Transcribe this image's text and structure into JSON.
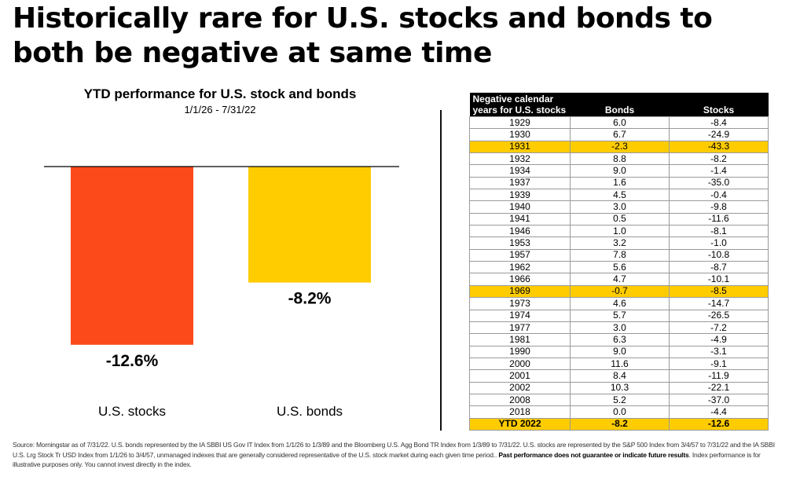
{
  "headline": "Historically rare for U.S. stocks and bonds to both be negative at same time",
  "chart_data": {
    "type": "bar",
    "title": "YTD performance for U.S. stock and bonds",
    "subtitle": "1/1/26 - 7/31/22",
    "categories": [
      "U.S. stocks",
      "U.S. bonds"
    ],
    "values": [
      -12.6,
      -8.2
    ],
    "value_labels": [
      "-12.6%",
      "-8.2%"
    ],
    "colors": [
      "#fc4a1a",
      "#ffcc00"
    ],
    "xlabel": "",
    "ylabel": "",
    "grid": false,
    "legend": "none"
  },
  "table": {
    "headers": [
      "Negative calendar years for U.S. stocks",
      "Bonds",
      "Stocks"
    ],
    "rows": [
      {
        "year": "1929",
        "bonds": "6.0",
        "stocks": "-8.4",
        "highlight": false
      },
      {
        "year": "1930",
        "bonds": "6.7",
        "stocks": "-24.9",
        "highlight": false
      },
      {
        "year": "1931",
        "bonds": "-2.3",
        "stocks": "-43.3",
        "highlight": true
      },
      {
        "year": "1932",
        "bonds": "8.8",
        "stocks": "-8.2",
        "highlight": false
      },
      {
        "year": "1934",
        "bonds": "9.0",
        "stocks": "-1.4",
        "highlight": false
      },
      {
        "year": "1937",
        "bonds": "1.6",
        "stocks": "-35.0",
        "highlight": false
      },
      {
        "year": "1939",
        "bonds": "4.5",
        "stocks": "-0.4",
        "highlight": false
      },
      {
        "year": "1940",
        "bonds": "3.0",
        "stocks": "-9.8",
        "highlight": false
      },
      {
        "year": "1941",
        "bonds": "0.5",
        "stocks": "-11.6",
        "highlight": false
      },
      {
        "year": "1946",
        "bonds": "1.0",
        "stocks": "-8.1",
        "highlight": false
      },
      {
        "year": "1953",
        "bonds": "3.2",
        "stocks": "-1.0",
        "highlight": false
      },
      {
        "year": "1957",
        "bonds": "7.8",
        "stocks": "-10.8",
        "highlight": false
      },
      {
        "year": "1962",
        "bonds": "5.6",
        "stocks": "-8.7",
        "highlight": false
      },
      {
        "year": "1966",
        "bonds": "4.7",
        "stocks": "-10.1",
        "highlight": false
      },
      {
        "year": "1969",
        "bonds": "-0.7",
        "stocks": "-8.5",
        "highlight": true
      },
      {
        "year": "1973",
        "bonds": "4.6",
        "stocks": "-14.7",
        "highlight": false
      },
      {
        "year": "1974",
        "bonds": "5.7",
        "stocks": "-26.5",
        "highlight": false
      },
      {
        "year": "1977",
        "bonds": "3.0",
        "stocks": "-7.2",
        "highlight": false
      },
      {
        "year": "1981",
        "bonds": "6.3",
        "stocks": "-4.9",
        "highlight": false
      },
      {
        "year": "1990",
        "bonds": "9.0",
        "stocks": "-3.1",
        "highlight": false
      },
      {
        "year": "2000",
        "bonds": "11.6",
        "stocks": "-9.1",
        "highlight": false
      },
      {
        "year": "2001",
        "bonds": "8.4",
        "stocks": "-11.9",
        "highlight": false
      },
      {
        "year": "2002",
        "bonds": "10.3",
        "stocks": "-22.1",
        "highlight": false
      },
      {
        "year": "2008",
        "bonds": "5.2",
        "stocks": "-37.0",
        "highlight": false
      },
      {
        "year": "2018",
        "bonds": "0.0",
        "stocks": "-4.4",
        "highlight": false
      }
    ],
    "total": {
      "year": "YTD 2022",
      "bonds": "-8.2",
      "stocks": "-12.6"
    }
  },
  "source": {
    "text": "Source: Morningstar as of 7/31/22. U.S. bonds represented by the IA SBBI US Gov IT Index from 1/1/26 to 1/3/89 and the Bloomberg U.S. Agg Bond TR Index from 1/3/89 to 7/31/22. U.S. stocks are represented by the S&P 500 Index from 3/4/57 to 7/31/22 and the IA SBBI U.S. Lrg Stock Tr USD Index from 1/1/26 to 3/4/57, unmanaged indexes that are generally considered representative of the U.S. stock market during each given time period..",
    "bold": "Past performance does not guarantee or indicate future results",
    "tail": ". Index performance is for illustrative purposes only. You cannot invest directly in the index."
  }
}
